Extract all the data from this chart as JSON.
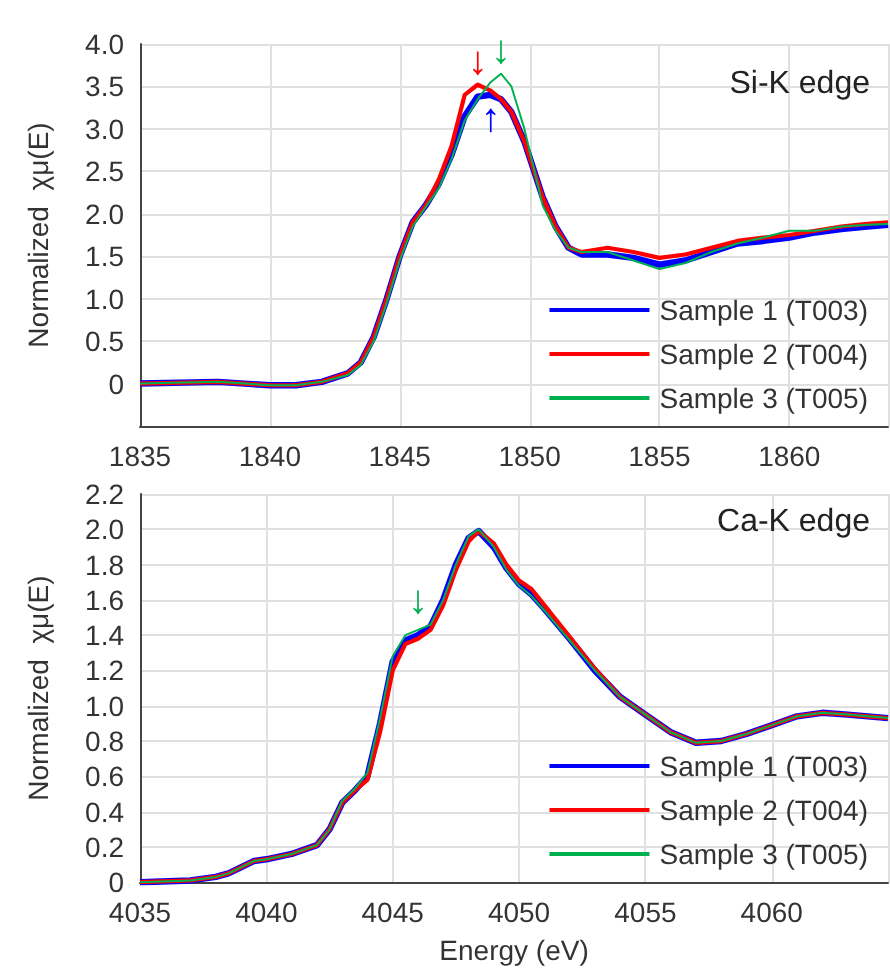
{
  "chart_data": [
    {
      "type": "line",
      "ylabel": "Normalized  χμ(E)",
      "annotations": [
        "Si-K edge",
        {
          "text": "↓",
          "x": 1848,
          "y": 3.55
        },
        {
          "text": "↓",
          "x": 1848.9,
          "y": 3.68
        },
        {
          "text": "↑",
          "x": 1848.5,
          "y": 3.35
        }
      ],
      "x": [
        1835,
        1838,
        1840,
        1841,
        1842,
        1843,
        1843.5,
        1844,
        1844.5,
        1845,
        1845.5,
        1846,
        1846.5,
        1847,
        1847.5,
        1848,
        1848.5,
        1848.9,
        1849.3,
        1849.8,
        1850.5,
        1851,
        1851.5,
        1852,
        1853,
        1854,
        1855,
        1856,
        1857,
        1858,
        1859,
        1860,
        1861,
        1862,
        1863,
        1863.8
      ],
      "series": [
        {
          "name": "Sample 1 (T003)",
          "color": "#0000ff",
          "values": [
            0,
            0.02,
            -0.02,
            -0.02,
            0.02,
            0.12,
            0.25,
            0.55,
            1.0,
            1.5,
            1.9,
            2.1,
            2.35,
            2.7,
            3.15,
            3.38,
            3.4,
            3.35,
            3.2,
            2.85,
            2.2,
            1.85,
            1.6,
            1.52,
            1.52,
            1.48,
            1.4,
            1.45,
            1.55,
            1.65,
            1.68,
            1.72,
            1.78,
            1.82,
            1.85,
            1.87
          ]
        },
        {
          "name": "Sample 2 (T004)",
          "color": "#ff0000",
          "values": [
            0,
            0.02,
            -0.02,
            -0.02,
            0.02,
            0.12,
            0.25,
            0.55,
            1.0,
            1.5,
            1.9,
            2.1,
            2.4,
            2.8,
            3.4,
            3.52,
            3.45,
            3.35,
            3.2,
            2.85,
            2.2,
            1.85,
            1.6,
            1.55,
            1.6,
            1.55,
            1.48,
            1.52,
            1.6,
            1.68,
            1.72,
            1.75,
            1.8,
            1.85,
            1.88,
            1.9
          ]
        },
        {
          "name": "Sample 3 (T005)",
          "color": "#00b050",
          "values": [
            0,
            0.02,
            -0.02,
            -0.02,
            0.02,
            0.1,
            0.22,
            0.5,
            0.95,
            1.45,
            1.85,
            2.08,
            2.3,
            2.65,
            3.1,
            3.35,
            3.55,
            3.65,
            3.5,
            3.0,
            2.1,
            1.8,
            1.6,
            1.55,
            1.55,
            1.45,
            1.35,
            1.42,
            1.55,
            1.65,
            1.72,
            1.8,
            1.8,
            1.85,
            1.87,
            1.88
          ]
        }
      ],
      "xlim": [
        1835,
        1863.8
      ],
      "ylim": [
        -0.5,
        4
      ],
      "xticks": [
        1835,
        1840,
        1845,
        1850,
        1855,
        1860
      ],
      "yticks": [
        {
          "value": 0,
          "label": "0"
        },
        {
          "value": 0.5,
          "label": "0.5"
        },
        {
          "value": 1,
          "label": "1.0"
        },
        {
          "value": 1.5,
          "label": "1.5"
        },
        {
          "value": 2,
          "label": "2.0"
        },
        {
          "value": 2.5,
          "label": "2.5"
        },
        {
          "value": 3,
          "label": "3.0"
        },
        {
          "value": 3.5,
          "label": "3.5"
        },
        {
          "value": 4,
          "label": "4.0"
        }
      ],
      "grid": true,
      "legend": "bottom right",
      "marker": "none",
      "line_style": "solid"
    },
    {
      "type": "line",
      "xlabel": "Energy (eV)",
      "ylabel": "Normalized  χμ(E)",
      "annotations": [
        "Ca-K edge",
        {
          "text": "↓",
          "x": 4046,
          "y": 1.48
        }
      ],
      "x": [
        4035,
        4037,
        4038,
        4038.5,
        4039.5,
        4040,
        4041,
        4042,
        4042.5,
        4043,
        4043.5,
        4044,
        4044.5,
        4045,
        4045.5,
        4046,
        4046.5,
        4047,
        4047.5,
        4048,
        4048.4,
        4049,
        4049.5,
        4050,
        4050.5,
        4051,
        4052,
        4053,
        4054,
        4055,
        4056,
        4057,
        4058,
        4059,
        4060,
        4061,
        4062,
        4063,
        4064.6
      ],
      "series": [
        {
          "name": "Sample 1 (T003)",
          "color": "#0000ff",
          "values": [
            0,
            0.01,
            0.03,
            0.05,
            0.12,
            0.13,
            0.16,
            0.21,
            0.3,
            0.45,
            0.52,
            0.6,
            0.9,
            1.25,
            1.37,
            1.4,
            1.45,
            1.6,
            1.8,
            1.95,
            1.99,
            1.9,
            1.78,
            1.69,
            1.63,
            1.55,
            1.38,
            1.2,
            1.05,
            0.95,
            0.85,
            0.79,
            0.8,
            0.84,
            0.89,
            0.94,
            0.96,
            0.95,
            0.93
          ]
        },
        {
          "name": "Sample 2 (T004)",
          "color": "#ff0000",
          "values": [
            0,
            0.01,
            0.03,
            0.05,
            0.12,
            0.13,
            0.16,
            0.21,
            0.3,
            0.45,
            0.52,
            0.58,
            0.85,
            1.2,
            1.35,
            1.38,
            1.43,
            1.57,
            1.77,
            1.93,
            1.99,
            1.92,
            1.8,
            1.71,
            1.66,
            1.57,
            1.39,
            1.21,
            1.05,
            0.95,
            0.85,
            0.79,
            0.8,
            0.84,
            0.89,
            0.94,
            0.96,
            0.95,
            0.93
          ]
        },
        {
          "name": "Sample 3 (T005)",
          "color": "#00b050",
          "values": [
            0,
            0.01,
            0.03,
            0.05,
            0.12,
            0.13,
            0.16,
            0.21,
            0.3,
            0.46,
            0.53,
            0.62,
            0.93,
            1.28,
            1.4,
            1.43,
            1.46,
            1.6,
            1.8,
            1.96,
            2.0,
            1.9,
            1.77,
            1.68,
            1.62,
            1.54,
            1.37,
            1.2,
            1.05,
            0.95,
            0.85,
            0.79,
            0.8,
            0.84,
            0.89,
            0.94,
            0.96,
            0.95,
            0.93
          ]
        }
      ],
      "xlim": [
        4035,
        4064.6
      ],
      "ylim": [
        0,
        2.2
      ],
      "xticks": [
        4035,
        4040,
        4045,
        4050,
        4055,
        4060
      ],
      "yticks": [
        {
          "value": 0,
          "label": "0"
        },
        {
          "value": 0.2,
          "label": "0.2"
        },
        {
          "value": 0.4,
          "label": "0.4"
        },
        {
          "value": 0.6,
          "label": "0.6"
        },
        {
          "value": 0.8,
          "label": "0.8"
        },
        {
          "value": 1,
          "label": "1.0"
        },
        {
          "value": 1.2,
          "label": "1.2"
        },
        {
          "value": 1.4,
          "label": "1.4"
        },
        {
          "value": 1.6,
          "label": "1.6"
        },
        {
          "value": 1.8,
          "label": "1.8"
        },
        {
          "value": 2,
          "label": "2.0"
        },
        {
          "value": 2.2,
          "label": "2.2"
        }
      ],
      "grid": true,
      "legend": "bottom right",
      "marker": "none",
      "line_style": "solid"
    }
  ]
}
